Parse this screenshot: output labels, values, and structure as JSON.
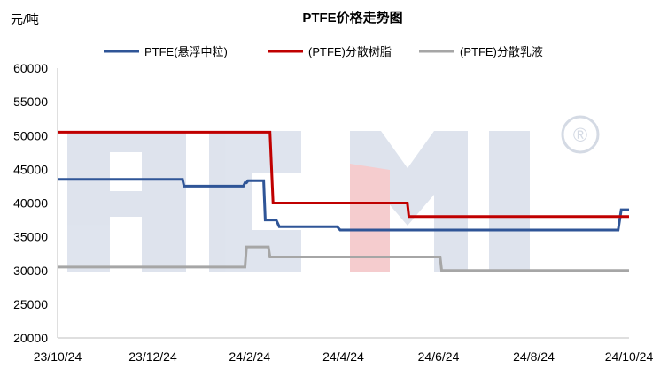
{
  "chart_data": {
    "type": "line",
    "title": "PTFE价格走势图",
    "ylabel": "元/吨",
    "xlabel": "",
    "ylim": [
      20000,
      60000
    ],
    "yticks": [
      20000,
      25000,
      30000,
      35000,
      40000,
      45000,
      50000,
      55000,
      60000
    ],
    "xlim": [
      "2023-10-01",
      "2024-10-01"
    ],
    "xticks": [
      {
        "date": "2023-10-01",
        "label": "23/10/24"
      },
      {
        "date": "2023-12-01",
        "label": "23/12/24"
      },
      {
        "date": "2024-02-01",
        "label": "24/2/24"
      },
      {
        "date": "2024-04-01",
        "label": "24/4/24"
      },
      {
        "date": "2024-06-01",
        "label": "24/6/24"
      },
      {
        "date": "2024-08-01",
        "label": "24/8/24"
      },
      {
        "date": "2024-10-01",
        "label": "24/10/24"
      }
    ],
    "grid": false,
    "legend": "top",
    "series": [
      {
        "name": "PTFE(悬浮中粒)",
        "color": "#2f5597",
        "points": [
          [
            "2023-10-01",
            43500
          ],
          [
            "2023-12-20",
            43500
          ],
          [
            "2023-12-21",
            42500
          ],
          [
            "2024-01-28",
            42500
          ],
          [
            "2024-01-29",
            43000
          ],
          [
            "2024-01-30",
            43000
          ],
          [
            "2024-01-31",
            43300
          ],
          [
            "2024-02-10",
            43300
          ],
          [
            "2024-02-11",
            37500
          ],
          [
            "2024-02-18",
            37500
          ],
          [
            "2024-02-20",
            36500
          ],
          [
            "2024-03-28",
            36500
          ],
          [
            "2024-03-30",
            36000
          ],
          [
            "2024-09-24",
            36000
          ],
          [
            "2024-09-26",
            39000
          ],
          [
            "2024-10-01",
            39000
          ]
        ]
      },
      {
        "name": "(PTFE)分散树脂",
        "color": "#c00000",
        "points": [
          [
            "2023-10-01",
            50500
          ],
          [
            "2024-02-14",
            50500
          ],
          [
            "2024-02-16",
            40000
          ],
          [
            "2024-05-12",
            40000
          ],
          [
            "2024-05-13",
            38000
          ],
          [
            "2024-10-01",
            38000
          ]
        ]
      },
      {
        "name": "(PTFE)分散乳液",
        "color": "#a6a6a6",
        "points": [
          [
            "2023-10-01",
            30500
          ],
          [
            "2024-01-29",
            30500
          ],
          [
            "2024-01-30",
            33500
          ],
          [
            "2024-02-13",
            33500
          ],
          [
            "2024-02-14",
            32000
          ],
          [
            "2024-06-02",
            32000
          ],
          [
            "2024-06-03",
            30000
          ],
          [
            "2024-10-01",
            30000
          ]
        ]
      }
    ]
  },
  "watermark": {
    "text": "ACMI",
    "symbol": "®"
  }
}
